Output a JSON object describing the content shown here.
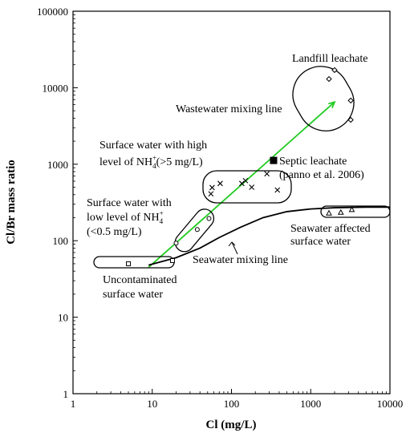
{
  "chart_data": {
    "type": "scatter",
    "xlabel": "Cl (mg/L)",
    "ylabel": "Cl/Br mass ratio",
    "x_scale": "log",
    "y_scale": "log",
    "xlim": [
      1,
      10000
    ],
    "ylim": [
      1,
      100000
    ],
    "x_ticks": [
      "1",
      "10",
      "100",
      "1000",
      "10000"
    ],
    "y_ticks": [
      "1",
      "10",
      "100",
      "1000",
      "10000",
      "100000"
    ],
    "grid": false,
    "series": [
      {
        "name": "Uncontaminated surface water",
        "marker": "square",
        "points": [
          [
            5,
            50
          ],
          [
            18,
            55
          ]
        ]
      },
      {
        "name": "Surface water with low level of NH4+ (<0.5 mg/L)",
        "marker": "circle",
        "points": [
          [
            20,
            93
          ],
          [
            37,
            140
          ],
          [
            52,
            195
          ]
        ]
      },
      {
        "name": "Surface water with high level of NH4+ (>5 mg/L)",
        "marker": "x",
        "points": [
          [
            55,
            410
          ],
          [
            57,
            495
          ],
          [
            72,
            560
          ],
          [
            135,
            560
          ],
          [
            150,
            610
          ],
          [
            180,
            500
          ],
          [
            280,
            750
          ],
          [
            380,
            460
          ]
        ]
      },
      {
        "name": "Landfill leachate",
        "marker": "diamond",
        "points": [
          [
            1700,
            13000
          ],
          [
            2000,
            17000
          ],
          [
            3200,
            6800
          ],
          [
            3200,
            3800
          ]
        ]
      },
      {
        "name": "Seawater affected surface water",
        "marker": "triangle",
        "points": [
          [
            1700,
            230
          ],
          [
            2400,
            235
          ],
          [
            3300,
            255
          ]
        ]
      },
      {
        "name": "Septic leachate",
        "marker": "filled-square",
        "points": [
          [
            340,
            1120
          ]
        ]
      }
    ],
    "lines": [
      {
        "name": "Wastewater mixing line",
        "color": "#22cc22",
        "points": [
          [
            9,
            45
          ],
          [
            2000,
            6500
          ]
        ]
      },
      {
        "name": "Seawater mixing line",
        "color": "#000000",
        "points": [
          [
            9,
            48
          ],
          [
            20,
            60
          ],
          [
            40,
            80
          ],
          [
            70,
            110
          ],
          [
            130,
            150
          ],
          [
            250,
            200
          ],
          [
            500,
            240
          ],
          [
            1000,
            260
          ],
          [
            2000,
            270
          ],
          [
            5000,
            275
          ],
          [
            10000,
            275
          ]
        ]
      }
    ],
    "annotations": {
      "landfill": "Landfill leachate",
      "wastewater": "Wastewater mixing line",
      "high_nh4_1": "Surface water with high",
      "high_nh4_2": "level of NH",
      "high_nh4_2b": "(>5 mg/L)",
      "septic_1": "Septic leachate",
      "septic_2": "(panno et al. 2006)",
      "low_nh4_1": "Surface water with",
      "low_nh4_2": "low level of NH",
      "low_nh4_3": "(<0.5 mg/L)",
      "seawater_aff_1": "Seawater affected",
      "seawater_aff_2": "surface water",
      "seawater_mix": "Seawater mixing line",
      "uncont_1": "Uncontaminated",
      "uncont_2": "surface water",
      "ion_sup": "+",
      "ion_sub": "4"
    },
    "colors": {
      "wastewater_line": "#22cc22",
      "axis": "#000000"
    }
  }
}
